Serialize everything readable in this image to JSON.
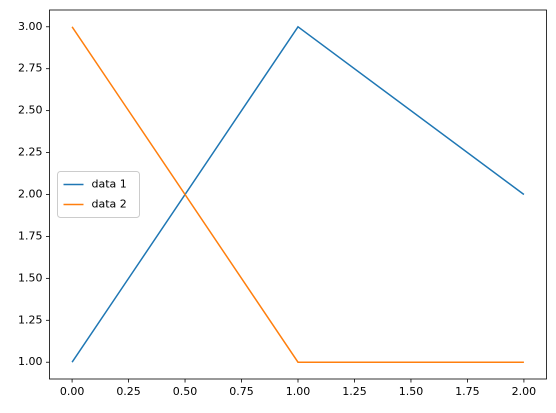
{
  "chart_data": {
    "type": "line",
    "x": [
      0,
      1,
      2
    ],
    "series": [
      {
        "name": "data 1",
        "color": "#1f77b4",
        "values": [
          1,
          3,
          2
        ]
      },
      {
        "name": "data 2",
        "color": "#ff7f0e",
        "values": [
          3,
          1,
          1
        ]
      }
    ],
    "xlim": [
      -0.1,
      2.1
    ],
    "xticks": [
      {
        "value": 0,
        "label": "0.00"
      },
      {
        "value": 0.25,
        "label": "0.25"
      },
      {
        "value": 0.5,
        "label": "0.50"
      },
      {
        "value": 0.75,
        "label": "0.75"
      },
      {
        "value": 1,
        "label": "1.00"
      },
      {
        "value": 1.25,
        "label": "1.25"
      },
      {
        "value": 1.5,
        "label": "1.50"
      },
      {
        "value": 1.75,
        "label": "1.75"
      },
      {
        "value": 2,
        "label": "2.00"
      }
    ],
    "ylim": [
      0.9,
      3.1
    ],
    "yticks": [
      {
        "value": 1,
        "label": "1.00"
      },
      {
        "value": 1.25,
        "label": "1.25"
      },
      {
        "value": 1.5,
        "label": "1.50"
      },
      {
        "value": 1.75,
        "label": "1.75"
      },
      {
        "value": 2,
        "label": "2.00"
      },
      {
        "value": 2.25,
        "label": "2.25"
      },
      {
        "value": 2.5,
        "label": "2.50"
      },
      {
        "value": 2.75,
        "label": "2.75"
      },
      {
        "value": 3,
        "label": "3.00"
      }
    ],
    "grid": false,
    "legend": "center left"
  }
}
